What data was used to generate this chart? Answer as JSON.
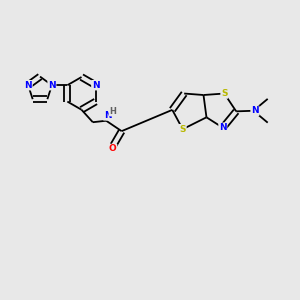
{
  "background_color": "#e8e8e8",
  "bond_color": "#000000",
  "atom_colors": {
    "N": "#0000ff",
    "O": "#ff0000",
    "S": "#b8b800",
    "C": "#000000",
    "H": "#606060"
  },
  "figsize": [
    3.0,
    3.0
  ],
  "dpi": 100,
  "lw": 1.3,
  "fs": 6.5
}
